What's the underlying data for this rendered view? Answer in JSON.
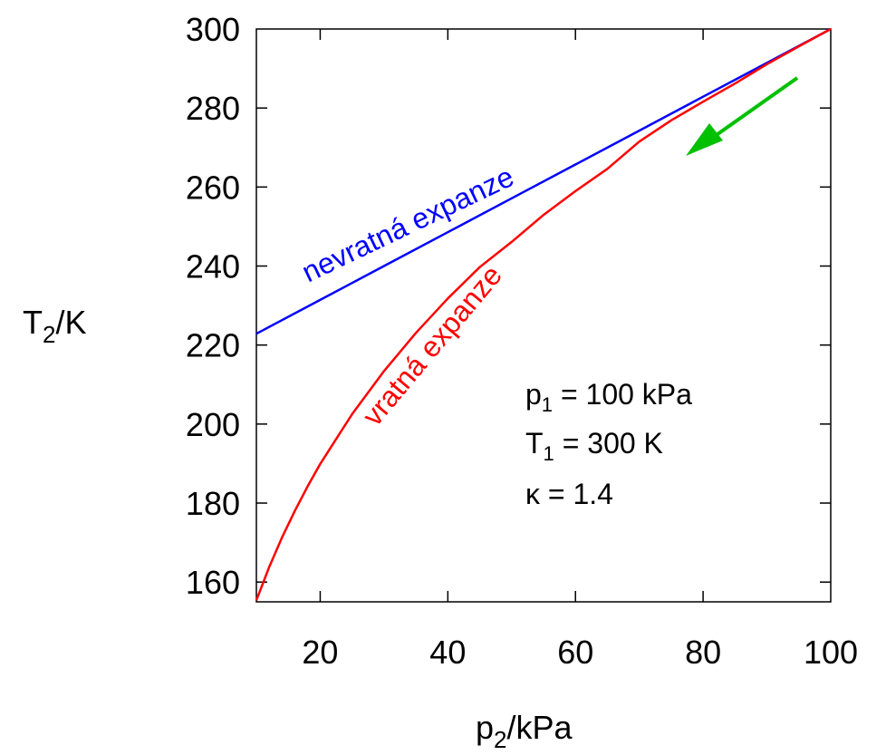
{
  "chart_data": {
    "type": "line",
    "xlabel": {
      "base": "p",
      "sub": "2",
      "rest": "/kPa"
    },
    "ylabel": {
      "base": "T",
      "sub": "2",
      "rest": "/K"
    },
    "xlim": [
      10,
      100
    ],
    "ylim": [
      155,
      300
    ],
    "xticks": [
      20,
      40,
      60,
      80,
      100
    ],
    "yticks": [
      160,
      180,
      200,
      220,
      240,
      260,
      280,
      300
    ],
    "grid": false,
    "p1": 100,
    "T1": 300,
    "kappa": 1.4,
    "series": [
      {
        "name": "nevratná expanze",
        "color": "#0000ff",
        "x": [
          10,
          20,
          30,
          40,
          50,
          60,
          70,
          80,
          90,
          100
        ],
        "y": [
          222.86,
          231.43,
          240.0,
          248.57,
          257.14,
          265.71,
          274.29,
          282.86,
          291.43,
          300.0
        ]
      },
      {
        "name": "vratná expanze",
        "color": "#ff0000",
        "x": [
          10,
          12,
          14,
          16,
          18,
          20,
          25,
          30,
          35,
          40,
          45,
          50,
          55,
          60,
          65,
          70,
          75,
          80,
          85,
          90,
          95,
          100
        ],
        "y": [
          155.39,
          163.79,
          171.24,
          177.97,
          184.15,
          189.87,
          202.51,
          213.42,
          223.08,
          231.79,
          239.74,
          246.1,
          252.94,
          258.95,
          264.6,
          271.5,
          276.87,
          281.59,
          286.19,
          291.09,
          295.62,
          300.0
        ]
      }
    ],
    "annotations": {
      "p1": {
        "base": "p",
        "sub": "1",
        "rest": " = 100 kPa"
      },
      "T1": {
        "base": "T",
        "sub": "1",
        "rest": " = 300 K"
      },
      "kappa": "κ = 1.4"
    },
    "arrow_color": "#00c000"
  }
}
